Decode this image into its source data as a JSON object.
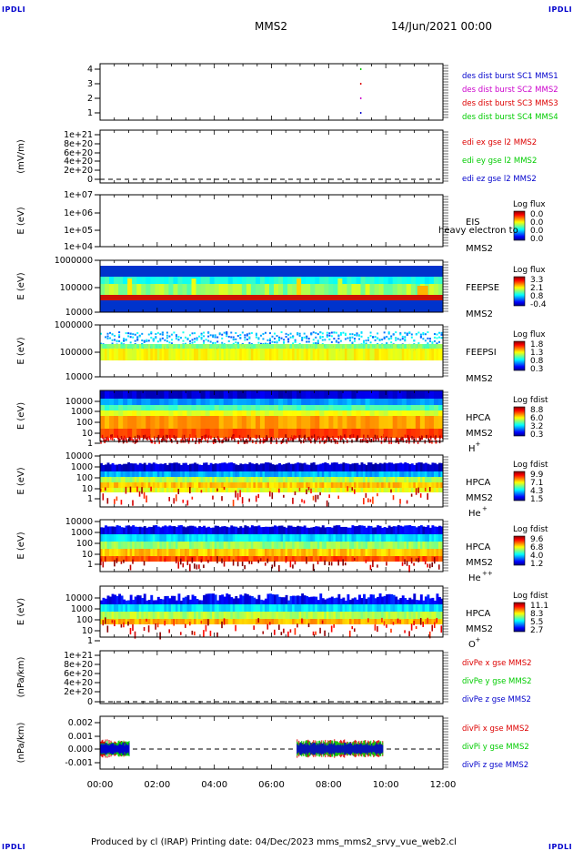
{
  "corner_labels": {
    "tl": "IPDLI",
    "tr": "IPDLI",
    "bl": "IPDLI",
    "br": "IPDLI"
  },
  "header": {
    "spacecraft": "MMS2",
    "date": "14/Jun/2021 00:00"
  },
  "footer": {
    "text": "Produced by cl (IRAP)   Printing date: 04/Dec/2023   mms_mms2_srvy_vue_web2.cl"
  },
  "x_axis": {
    "range_hours": [
      0,
      12
    ],
    "ticks": [
      "00:00",
      "02:00",
      "04:00",
      "06:00",
      "08:00",
      "10:00",
      "12:00"
    ]
  },
  "colors": {
    "red": "#dd0000",
    "green": "#00cc00",
    "blue": "#0000cc",
    "magenta": "#cc00cc"
  },
  "chart_data": [
    {
      "type": "scatter",
      "ylabel": "",
      "yticks": [
        "4",
        "3",
        "2",
        "1"
      ],
      "ylim": [
        0.5,
        4.5
      ],
      "series": [
        {
          "name": "des dist burst SC1 MMS1",
          "color": "#0000cc",
          "x": [
            9.1
          ],
          "y": [
            1
          ]
        },
        {
          "name": "des dist burst SC2 MMS2",
          "color": "#cc00cc",
          "x": [
            9.1
          ],
          "y": [
            2
          ]
        },
        {
          "name": "des dist burst SC3 MMS3",
          "color": "#dd0000",
          "x": [
            9.1
          ],
          "y": [
            3
          ]
        },
        {
          "name": "des dist burst SC4 MMS4",
          "color": "#00cc00",
          "x": [
            9.1
          ],
          "y": [
            4
          ]
        }
      ]
    },
    {
      "type": "line",
      "ylabel": "(mV/m)",
      "yticks": [
        "1e+21",
        "8e+20",
        "6e+20",
        "4e+20",
        "2e+20",
        "0"
      ],
      "ylim": [
        0,
        1e+21
      ],
      "series": [
        {
          "name": "edi ex gse l2 MMS2",
          "color": "#dd0000"
        },
        {
          "name": "edi ey gse l2 MMS2",
          "color": "#00cc00"
        },
        {
          "name": "edi ez gse l2 MMS2",
          "color": "#0000cc"
        }
      ]
    },
    {
      "type": "heatmap",
      "ylabel": "E (eV)",
      "yticks": [
        "1e+07",
        "1e+06",
        "1e+05",
        "1e+04"
      ],
      "instrument": "EIS",
      "spacecraft": "MMS2",
      "overlay_text": "heavy electron to",
      "colorbar": {
        "label": "Log flux",
        "ticks": [
          "0.0",
          "0.0",
          "0.0",
          "0.0"
        ]
      }
    },
    {
      "type": "heatmap",
      "ylabel": "E (eV)",
      "yticks": [
        "1000000",
        "100000",
        "10000"
      ],
      "instrument": "FEEPSE",
      "spacecraft": "MMS2",
      "colorbar": {
        "label": "Log flux",
        "ticks": [
          "3.3",
          "2.1",
          "0.8",
          "-0.4"
        ]
      }
    },
    {
      "type": "heatmap",
      "ylabel": "E (eV)",
      "yticks": [
        "1000000",
        "100000",
        "10000"
      ],
      "instrument": "FEEPSI",
      "spacecraft": "MMS2",
      "colorbar": {
        "label": "Log flux",
        "ticks": [
          "1.8",
          "1.3",
          "0.8",
          "0.3"
        ]
      }
    },
    {
      "type": "heatmap",
      "ylabel": "E (eV)",
      "yticks": [
        "10000",
        "1000",
        "100",
        "10",
        "1"
      ],
      "instrument": "HPCA",
      "spacecraft": "MMS2",
      "species": "H",
      "species_sup": "+",
      "colorbar": {
        "label": "Log fdist",
        "ticks": [
          "8.8",
          "6.0",
          "3.2",
          "0.3"
        ]
      }
    },
    {
      "type": "heatmap",
      "ylabel": "E (eV)",
      "yticks": [
        "10000",
        "1000",
        "100",
        "10",
        "1"
      ],
      "instrument": "HPCA",
      "spacecraft": "MMS2",
      "species": "He",
      "species_sup": "+",
      "colorbar": {
        "label": "Log fdist",
        "ticks": [
          "9.9",
          "7.1",
          "4.3",
          "1.5"
        ]
      }
    },
    {
      "type": "heatmap",
      "ylabel": "E (eV)",
      "yticks": [
        "10000",
        "1000",
        "100",
        "10",
        "1"
      ],
      "instrument": "HPCA",
      "spacecraft": "MMS2",
      "species": "He",
      "species_sup": "++",
      "colorbar": {
        "label": "Log fdist",
        "ticks": [
          "9.6",
          "6.8",
          "4.0",
          "1.2"
        ]
      }
    },
    {
      "type": "heatmap",
      "ylabel": "E (eV)",
      "yticks": [
        "10000",
        "1000",
        "100",
        "10",
        "1"
      ],
      "instrument": "HPCA",
      "spacecraft": "MMS2",
      "species": "O",
      "species_sup": "+",
      "colorbar": {
        "label": "Log fdist",
        "ticks": [
          "11.1",
          "8.3",
          "5.5",
          "2.7"
        ]
      }
    },
    {
      "type": "line",
      "ylabel": "(nPa/km)",
      "yticks": [
        "1e+21",
        "8e+20",
        "6e+20",
        "4e+20",
        "2e+20",
        "0"
      ],
      "ylim": [
        0,
        1e+21
      ],
      "series": [
        {
          "name": "divPe x gse MMS2",
          "color": "#dd0000"
        },
        {
          "name": "divPe y gse MMS2",
          "color": "#00cc00"
        },
        {
          "name": "divPe z gse MMS2",
          "color": "#0000cc"
        }
      ]
    },
    {
      "type": "line",
      "ylabel": "(nPa/km)",
      "yticks": [
        "0.002",
        "0.001",
        "0.000",
        "-0.001"
      ],
      "ylim": [
        -0.0015,
        0.0025
      ],
      "series": [
        {
          "name": "divPi x gse MMS2",
          "color": "#dd0000"
        },
        {
          "name": "divPi y gse MMS2",
          "color": "#00cc00"
        },
        {
          "name": "divPi z gse MMS2",
          "color": "#0000cc"
        }
      ],
      "data_intervals_hours": [
        [
          0.0,
          1.05
        ],
        [
          6.9,
          9.9
        ]
      ]
    }
  ]
}
